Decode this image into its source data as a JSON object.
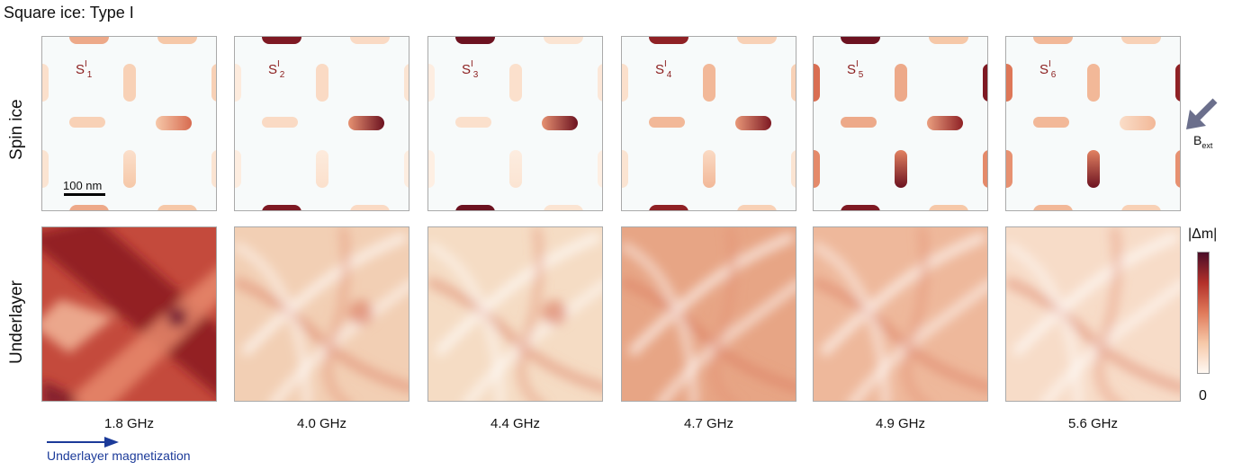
{
  "title": "Square ice: Type I",
  "row_labels": {
    "top": "Spin ice",
    "bottom": "Underlayer"
  },
  "scale_bar_label": "100 nm",
  "colorbar": {
    "title": "|Δm|",
    "min_label": "0",
    "colors": [
      "#fff8f2",
      "#f6c8a8",
      "#e07a5a",
      "#b3302a",
      "#4a0d28"
    ]
  },
  "field_label": {
    "main": "B",
    "sub": "ext"
  },
  "underlayer_caption": "Underlayer magnetization",
  "panels": [
    {
      "state": {
        "main": "S",
        "sup": "I",
        "sub": "1"
      },
      "frequency": "1.8 GHz"
    },
    {
      "state": {
        "main": "S",
        "sup": "I",
        "sub": "2"
      },
      "frequency": "4.0 GHz"
    },
    {
      "state": {
        "main": "S",
        "sup": "I",
        "sub": "3"
      },
      "frequency": "4.4 GHz"
    },
    {
      "state": {
        "main": "S",
        "sup": "I",
        "sub": "4"
      },
      "frequency": "4.7 GHz"
    },
    {
      "state": {
        "main": "S",
        "sup": "I",
        "sub": "5"
      },
      "frequency": "4.9 GHz"
    },
    {
      "state": {
        "main": "S",
        "sup": "I",
        "sub": "6"
      },
      "frequency": "5.6 GHz"
    }
  ]
}
